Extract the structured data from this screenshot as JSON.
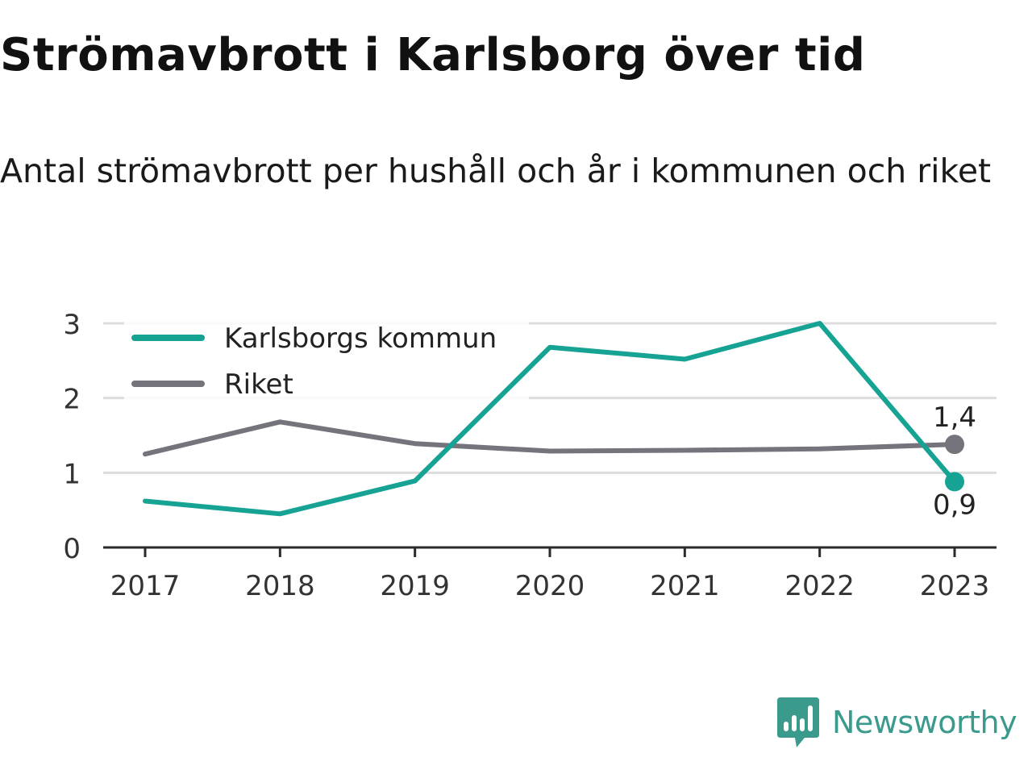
{
  "title": "Strömavbrott i Karlsborg över tid",
  "subtitle": "Antal strömavbrott per hushåll och år i kommunen och riket",
  "brand": {
    "name": "Newsworthy",
    "color": "#3a9a8c",
    "icon": "newsworthy-logo-icon"
  },
  "chart_data": {
    "type": "line",
    "x": [
      "2017",
      "2018",
      "2019",
      "2020",
      "2021",
      "2022",
      "2023"
    ],
    "ylim": [
      0,
      3
    ],
    "yticks": [
      "0",
      "1",
      "2",
      "3"
    ],
    "grid": true,
    "legend_position": "top-left",
    "series": [
      {
        "name": "Karlsborgs kommun",
        "color": "#16a394",
        "values": [
          0.62,
          0.45,
          0.89,
          2.68,
          2.52,
          3.0,
          0.88
        ],
        "end_label": "0,9"
      },
      {
        "name": "Riket",
        "color": "#75737c",
        "values": [
          1.25,
          1.68,
          1.39,
          1.29,
          1.3,
          1.32,
          1.38
        ],
        "end_label": "1,4"
      }
    ]
  }
}
